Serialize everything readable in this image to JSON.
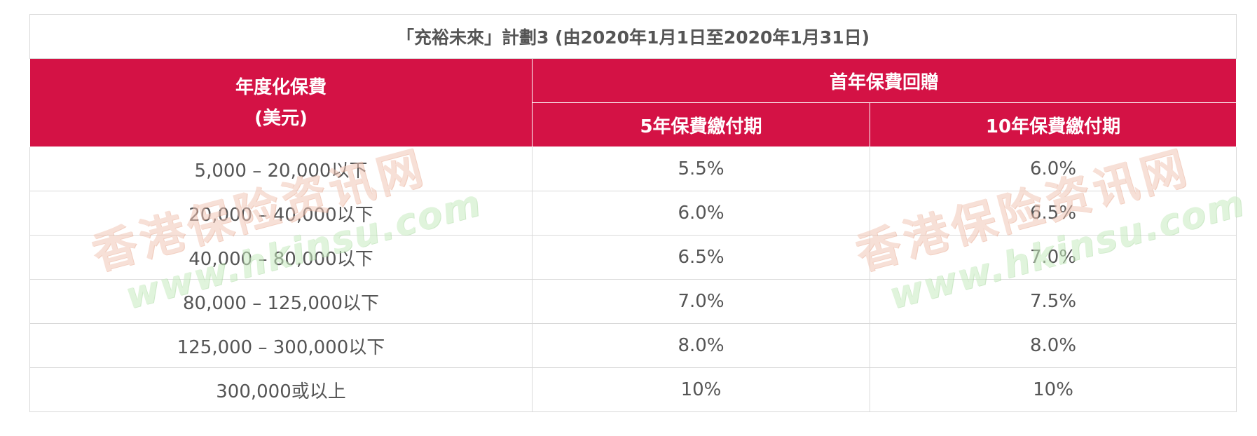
{
  "table": {
    "title": "「充裕未來」計劃3 (由2020年1月1日至2020年1月31日)",
    "header": {
      "premium_line1": "年度化保費",
      "premium_line2": "(美元)",
      "rebate_group": "首年保費回贈",
      "col_5yr": "5年保費繳付期",
      "col_10yr": "10年保費繳付期"
    },
    "rows": [
      {
        "range": "5,000 – 20,000以下",
        "five": "5.5%",
        "ten": "6.0%"
      },
      {
        "range": "20,000 – 40,000以下",
        "five": "6.0%",
        "ten": "6.5%"
      },
      {
        "range": "40,000 – 80,000以下",
        "five": "6.5%",
        "ten": "7.0%"
      },
      {
        "range": "80,000 – 125,000以下",
        "five": "7.0%",
        "ten": "7.5%"
      },
      {
        "range": "125,000 – 300,000以下",
        "five": "8.0%",
        "ten": "8.0%"
      },
      {
        "range": "300,000或以上",
        "five": "10%",
        "ten": "10%"
      }
    ]
  },
  "watermark": {
    "cn": "香港保险资讯网",
    "url": "www.hkinsu.com"
  },
  "colors": {
    "header_bg": "#d41245",
    "header_text": "#ffffff",
    "body_text": "#555555",
    "border": "#d9d9d9"
  }
}
